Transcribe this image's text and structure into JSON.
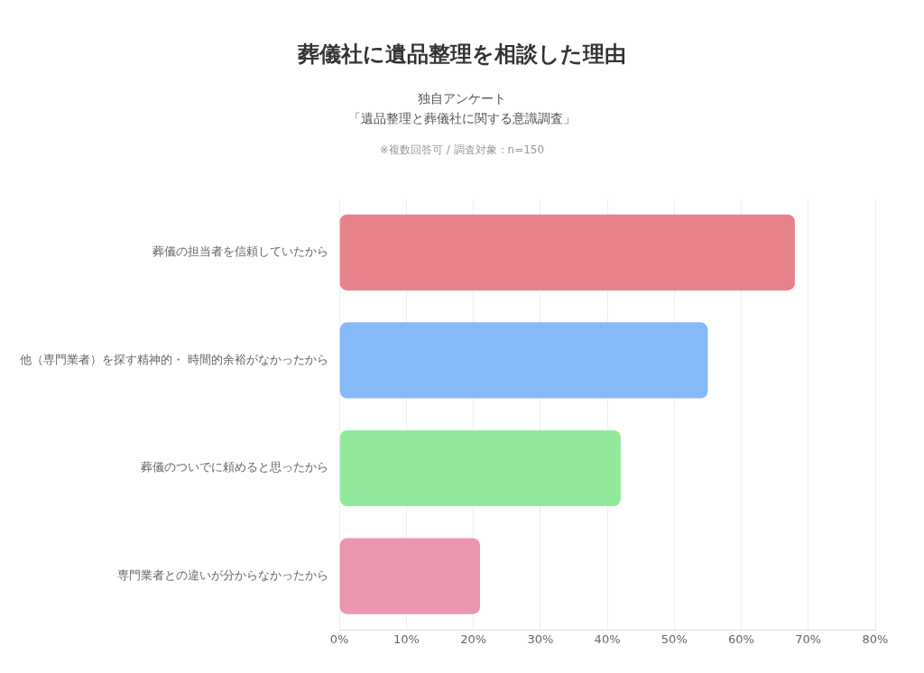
{
  "chart_data": {
    "type": "bar",
    "orientation": "horizontal",
    "title": "葬儀社に遺品整理を相談した理由",
    "subtitle": "独自アンケート",
    "annotations": [
      "「遺品整理と葬儀社に関する意識調査」",
      "※複数回答可 / 調査対象：n=150"
    ],
    "categories": [
      "葬儀の担当者を信頼していたから",
      "他（専門業者）を探す精神的・ 時間的余裕がなかったから",
      "葬儀のついでに頼めると思ったから",
      "専門業者との違いが分からなかったから"
    ],
    "values": [
      68,
      55,
      42,
      21
    ],
    "colors": [
      "#e8828a",
      "#86b9f8",
      "#93e99b",
      "#ec95ae"
    ],
    "xlim": [
      0,
      80
    ],
    "xticks": [
      {
        "value": 0,
        "label": "0%"
      },
      {
        "value": 10,
        "label": "10%"
      },
      {
        "value": 20,
        "label": "20%"
      },
      {
        "value": 30,
        "label": "30%"
      },
      {
        "value": 40,
        "label": "40%"
      },
      {
        "value": 50,
        "label": "50%"
      },
      {
        "value": 60,
        "label": "60%"
      },
      {
        "value": 70,
        "label": "70%"
      },
      {
        "value": 80,
        "label": "80%"
      }
    ],
    "grid": "x"
  }
}
